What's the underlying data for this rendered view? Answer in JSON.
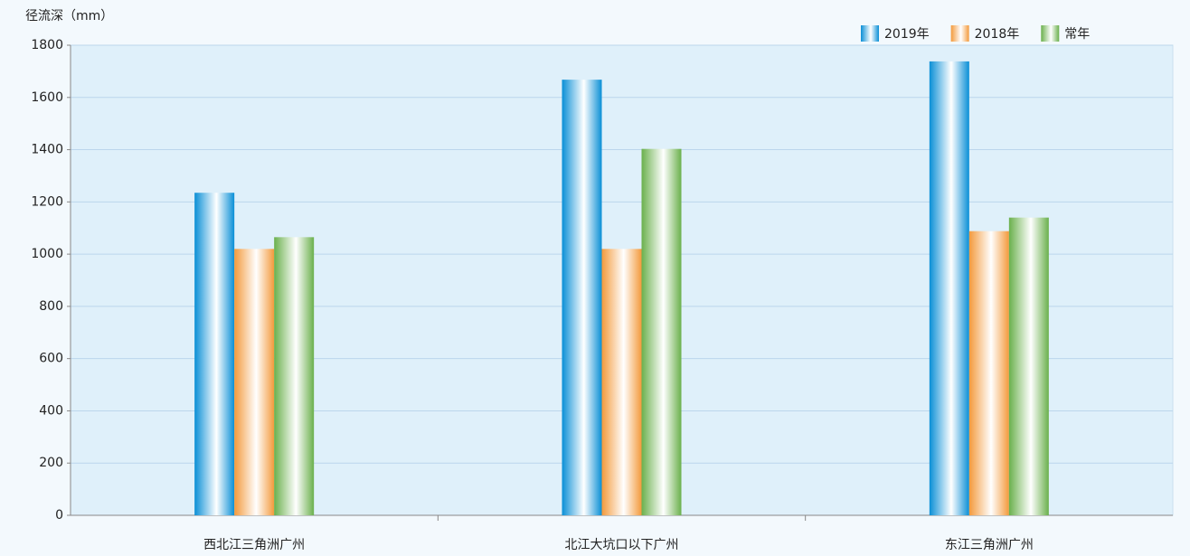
{
  "chart_data": {
    "type": "bar",
    "y_label": "径流深（mm）",
    "categories": [
      "西北江三角洲广州",
      "北江大坑口以下广州",
      "东江三角洲广州"
    ],
    "series": [
      {
        "name": "2019年",
        "color": "#0a8fd6",
        "values": [
          1235,
          1668,
          1738
        ]
      },
      {
        "name": "2018年",
        "color": "#f39a3c",
        "values": [
          1020,
          1020,
          1088
        ]
      },
      {
        "name": "常年",
        "color": "#6ab04c",
        "values": [
          1065,
          1403,
          1140
        ]
      }
    ],
    "ylim": [
      0,
      1800
    ],
    "yticks": [
      0,
      200,
      400,
      600,
      800,
      1000,
      1200,
      1400,
      1600,
      1800
    ],
    "grid": true,
    "legend": "top-right"
  }
}
